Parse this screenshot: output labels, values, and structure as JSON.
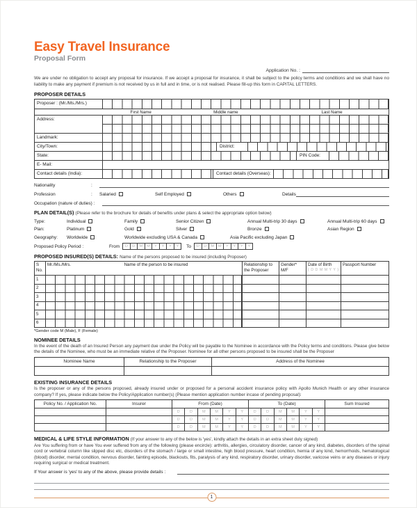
{
  "header": {
    "title": "Easy Travel Insurance",
    "subtitle": "Proposal Form",
    "application_no_label": "Application No. :"
  },
  "intro": {
    "disclaimer": "We are under no obligation to accept any proposal for insurance.  If we accept a proposal for insurance, it shall be subject to the policy terms and conditions and we shall have no liability to make any payment if premium is not received by us in full and in time, or is not realised. Please fill-up this form in CAPITAL LETTERS."
  },
  "proposer": {
    "section_title": "PROPOSER DETAILS",
    "proposer_label": "Proposer : (Mr./Ms./Mrs.)",
    "first_name_label": "First Name",
    "middle_name_label": "Middle name",
    "last_name_label": "Last Name",
    "address_label": "Address:",
    "landmark_label": "Landmark:",
    "city_label": "City/Town:",
    "district_label": "District:",
    "state_label": "State:",
    "pin_label": "PIN Code:",
    "email_label": "E- Mail:",
    "contact_india_label": "Contact details (India):",
    "contact_overseas_label": "Contact details (Overseas):",
    "nationality_label": "Nationality",
    "colon": ":",
    "profession_label": "Profession",
    "profession_options": [
      "Salaried",
      "Self Employed",
      "Others"
    ],
    "details_label": "Details",
    "occupation_label": "Occupation (nature of duties) :"
  },
  "plan": {
    "section_title": "PLAN DETAIL(S)",
    "section_note": "(Please refer to the brochure for details of benefits under plans & select the appropriate option below)",
    "type_label": "Type:",
    "type_options": [
      "Individual",
      "Family",
      "Senior Citizen",
      "Annual Multi-trip  30 days",
      "Annual Multi-trip  60 days"
    ],
    "plan_label": "Plan:",
    "plan_options": [
      "Platinum",
      "Gold",
      "Silver",
      "Bronze",
      "Asian Region"
    ],
    "geography_label": "Geography:",
    "geography_options": [
      "Worldwide",
      "Worldwide excluding USA & Canada",
      "Asia Pacific excluding Japan"
    ],
    "policy_period_label": "Proposed Policy Period :",
    "from_label": "From",
    "to_label": "To",
    "date_cells": [
      "D",
      "D",
      "M",
      "M",
      "Y",
      "Y",
      "Y",
      "Y"
    ]
  },
  "insured": {
    "section_title": "PROPOSED INSURED(S) DETAILS:",
    "section_note": "Name of the persons proposed to be insured (including Proposer)",
    "col_sno_line1": "S",
    "col_sno_line2": "No.",
    "col_salutation": "Mr./Ms./Mrs.",
    "col_name": "Name of the person to be insured",
    "col_relationship_line1": "Relationship to",
    "col_relationship_line2": "the Proposer",
    "col_gender_line1": "Gender*",
    "col_gender_line2": "M/F",
    "col_dob_line1": "Date of Birth",
    "col_dob_line2": "( D D M M Y Y )",
    "col_passport": "Passport Number",
    "row_numbers": [
      "1",
      "2",
      "3",
      "4",
      "5",
      "6"
    ],
    "gender_note": "*Gender code M (Male), F (Female)"
  },
  "nominee": {
    "section_title": "NOMINEE DETAILS",
    "description": "In the event of the death of an Insured Person any payment due under the Policy will be payable to the Nominee in accordance with the Policy terms and conditions. Please give below the details of the Nominee, who must be an immediate relative of the Proposer. Nominee for all other persons proposed to be insured shall be the Proposer",
    "col_name": "Nominee Name",
    "col_relationship": "Relationship to the Proposer",
    "col_address": "Address of the Nominee"
  },
  "existing": {
    "section_title": "EXISTING INSURANCE DETAILS",
    "description": "Is the proposer or any of the persons proposed, already insured under or proposed for a personal accident insurance policy with Apollo Munich Health or any other insurance company? If yes, please indicate below the Policy/Application number(s) (Please mention application number incase of pending proposal):",
    "col_policy": "Policy No. / Application No.",
    "col_insurer": "Insurer",
    "col_from": "From (Date)",
    "col_to": "To (Date)",
    "col_sum": "Sum Insured",
    "date_cells": [
      "D",
      "D",
      "M",
      "M",
      "Y",
      "Y"
    ]
  },
  "medical": {
    "section_title": "MEDICAL & LIFE STYLE INFORMATION",
    "section_note": "(If your answer to any of the below is 'yes', kindly attach the details in an extra sheet duly signed)",
    "description": "Are You suffering from or have You ever suffered from any of the following (please encircle): arthritis, allergies, circulatory disorder, cancer of any kind, diabetes, disorders of the spinal cord or vertebral column like slipped disc etc, disorders of the stomach / large or small intestine, high blood pressure, heart condition, hernia of any kind, hemorrhoids, hematological (blood) disorder, mental condition, nervous disorder, fainting episode, blackouts, fits, paralysis of any kind, respiratory disorder, urinary disorder, varicose veins or any diseases or injury requiring surgical or medical treatment.",
    "details_label": "If Your answer is 'yes' to any of the above, please provide details :"
  },
  "footer": {
    "page_number": "1"
  },
  "colors": {
    "accent_orange": "#F26522",
    "subtitle_gray": "#8B8D90",
    "footer_line_orange": "#DD9A66"
  }
}
